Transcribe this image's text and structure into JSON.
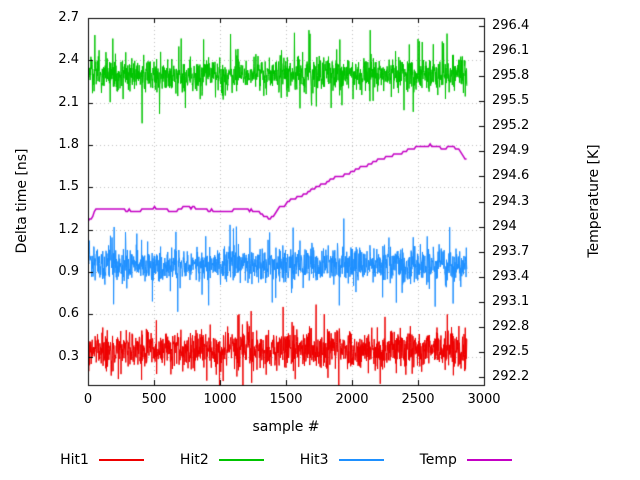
{
  "figure": {
    "background": "#ffffff",
    "text_color": "#000000",
    "grid_color": "#c0c0c0",
    "border_color": "#000000"
  },
  "chart_data": {
    "type": "line",
    "title": "",
    "xlabel": "sample #",
    "ylabel": "Delta time [ns]",
    "y2label": "Temperature [K]",
    "xlim": [
      0,
      3000
    ],
    "ylim_left": [
      0.1,
      2.7
    ],
    "ylim_right": [
      292.1,
      296.5
    ],
    "x_ticks": [
      "0",
      "500",
      "1000",
      "1500",
      "2000",
      "2500",
      "3000"
    ],
    "y_ticks_left": [
      "0.3",
      "0.6",
      "0.9",
      "1.2",
      "1.5",
      "1.8",
      "2.1",
      "2.4",
      "2.7"
    ],
    "y_ticks_right": [
      "292.2",
      "292.5",
      "292.8",
      "293.1",
      "293.4",
      "293.7",
      "294",
      "294.3",
      "294.6",
      "294.9",
      "295.2",
      "295.5",
      "295.8",
      "296.1",
      "296.4"
    ],
    "grid": true,
    "legend_position": "below",
    "series": [
      {
        "name": "Hit1",
        "type": "noisy-band",
        "axis": "left",
        "color": "#ee0000",
        "mean": 0.35,
        "spread": 0.1,
        "spike": 0.2,
        "x_start": 0,
        "x_end": 2870,
        "seed": 101
      },
      {
        "name": "Hit2",
        "type": "noisy-band",
        "axis": "left",
        "color": "#00c400",
        "mean": 2.3,
        "spread": 0.09,
        "spike": 0.2,
        "x_start": 0,
        "x_end": 2870,
        "seed": 202
      },
      {
        "name": "Hit3",
        "type": "noisy-band",
        "axis": "left",
        "color": "#1e90ff",
        "mean": 0.95,
        "spread": 0.09,
        "spike": 0.22,
        "x_start": 0,
        "x_end": 2870,
        "seed": 303
      },
      {
        "name": "Temp",
        "type": "step-line",
        "axis": "right",
        "color": "#c400c4",
        "quantize": 0.03,
        "seed": 404,
        "points": [
          [
            0,
            294.05
          ],
          [
            60,
            294.2
          ],
          [
            200,
            294.22
          ],
          [
            350,
            294.18
          ],
          [
            500,
            294.22
          ],
          [
            650,
            294.18
          ],
          [
            750,
            294.24
          ],
          [
            900,
            294.2
          ],
          [
            1050,
            294.18
          ],
          [
            1150,
            294.22
          ],
          [
            1280,
            294.18
          ],
          [
            1380,
            294.08
          ],
          [
            1450,
            294.22
          ],
          [
            1520,
            294.3
          ],
          [
            1600,
            294.36
          ],
          [
            1700,
            294.44
          ],
          [
            1800,
            294.52
          ],
          [
            1900,
            294.6
          ],
          [
            2000,
            294.66
          ],
          [
            2100,
            294.72
          ],
          [
            2200,
            294.79
          ],
          [
            2300,
            294.85
          ],
          [
            2400,
            294.9
          ],
          [
            2500,
            294.95
          ],
          [
            2600,
            294.97
          ],
          [
            2680,
            294.94
          ],
          [
            2760,
            294.96
          ],
          [
            2820,
            294.9
          ],
          [
            2870,
            294.8
          ]
        ]
      }
    ]
  }
}
